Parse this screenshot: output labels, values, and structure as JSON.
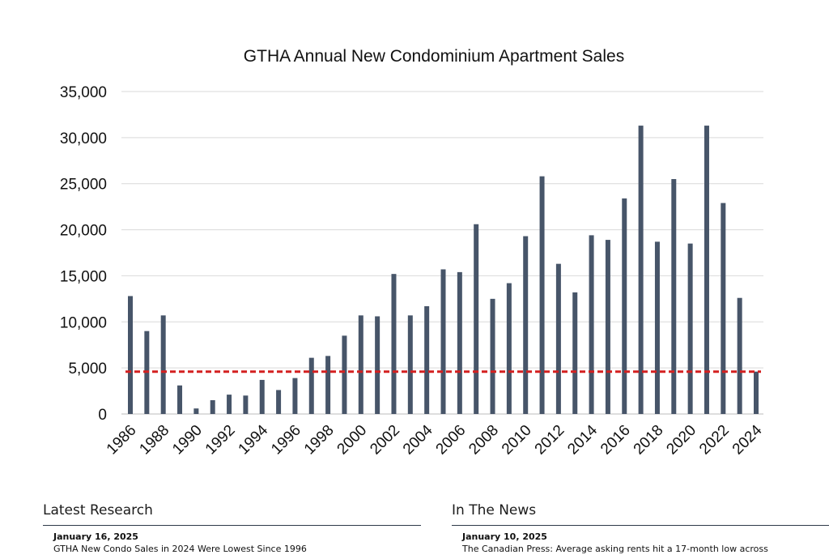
{
  "chart_data": {
    "type": "bar",
    "title": "GTHA Annual New Condominium Apartment Sales",
    "xlabel": "",
    "ylabel": "",
    "ylim": [
      0,
      35000
    ],
    "yticks": [
      0,
      5000,
      10000,
      15000,
      20000,
      25000,
      30000,
      35000
    ],
    "ytick_labels": [
      "0",
      "5,000",
      "10,000",
      "15,000",
      "20,000",
      "25,000",
      "30,000",
      "35,000"
    ],
    "categories": [
      "1986",
      "1987",
      "1988",
      "1989",
      "1990",
      "1991",
      "1992",
      "1993",
      "1994",
      "1995",
      "1996",
      "1997",
      "1998",
      "1999",
      "2000",
      "2001",
      "2002",
      "2003",
      "2004",
      "2005",
      "2006",
      "2007",
      "2008",
      "2009",
      "2010",
      "2011",
      "2012",
      "2013",
      "2014",
      "2015",
      "2016",
      "2017",
      "2018",
      "2019",
      "2020",
      "2021",
      "2022",
      "2023",
      "2024"
    ],
    "xtick_labels": [
      "1986",
      "1988",
      "1990",
      "1992",
      "1994",
      "1996",
      "1998",
      "2000",
      "2002",
      "2004",
      "2006",
      "2008",
      "2010",
      "2012",
      "2014",
      "2016",
      "2018",
      "2020",
      "2022",
      "2024"
    ],
    "values": [
      12800,
      9000,
      10700,
      3100,
      600,
      1500,
      2100,
      2000,
      3700,
      2600,
      3900,
      6100,
      6300,
      8500,
      10700,
      10600,
      15200,
      10700,
      11700,
      15700,
      15400,
      20600,
      12500,
      14200,
      19300,
      25800,
      16300,
      13200,
      19400,
      18900,
      23400,
      31300,
      18700,
      25500,
      18500,
      31300,
      22900,
      12600,
      4600
    ],
    "reference_line": {
      "value": 4600,
      "style": "dashed",
      "color": "#d42020"
    },
    "bar_color": "#475569",
    "grid": true,
    "legend": "none"
  },
  "sections": {
    "research": {
      "heading": "Latest Research",
      "date": "January 16, 2025",
      "title": "GTHA New Condo Sales in 2024 Were Lowest Since 1996"
    },
    "news": {
      "heading": "In The News",
      "date": "January 10, 2025",
      "title": "The Canadian Press: Average asking rents hit a 17-month low across"
    }
  }
}
